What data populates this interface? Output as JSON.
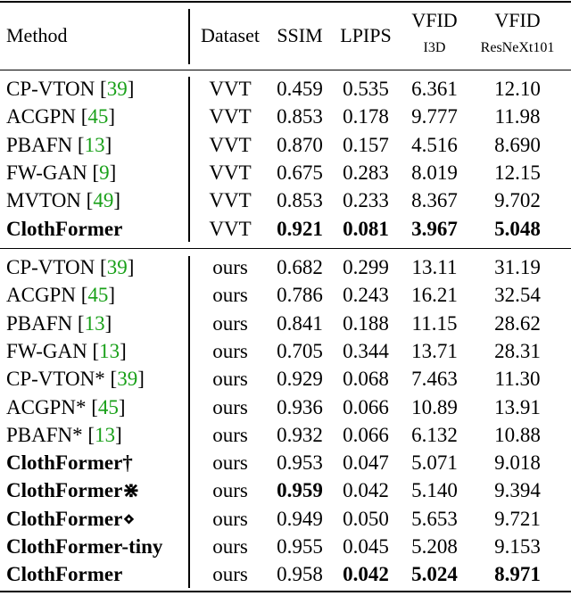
{
  "header": {
    "method": "Method",
    "dataset": "Dataset",
    "ssim": "SSIM",
    "lpips": "LPIPS",
    "vfid_i3d": "VFID",
    "vfid_i3d_sub": "I3D",
    "vfid_resnext": "VFID",
    "vfid_resnext_sub": "ResNeXt101"
  },
  "colors": {
    "citation": "#19a019"
  },
  "group1": [
    {
      "name": "CP-VTON ",
      "cite": "39",
      "dataset": "VVT",
      "ssim": "0.459",
      "lpips": "0.535",
      "vfid_i3d": "6.361",
      "vfid_resnext": "12.10",
      "bold_name": false,
      "bold": []
    },
    {
      "name": "ACGPN ",
      "cite": "45",
      "dataset": "VVT",
      "ssim": "0.853",
      "lpips": "0.178",
      "vfid_i3d": "9.777",
      "vfid_resnext": "11.98",
      "bold_name": false,
      "bold": []
    },
    {
      "name": "PBAFN ",
      "cite": "13",
      "dataset": "VVT",
      "ssim": "0.870",
      "lpips": "0.157",
      "vfid_i3d": "4.516",
      "vfid_resnext": "8.690",
      "bold_name": false,
      "bold": []
    },
    {
      "name": "FW-GAN ",
      "cite": "9",
      "dataset": "VVT",
      "ssim": "0.675",
      "lpips": "0.283",
      "vfid_i3d": "8.019",
      "vfid_resnext": "12.15",
      "bold_name": false,
      "bold": []
    },
    {
      "name": "MVTON ",
      "cite": "49",
      "dataset": "VVT",
      "ssim": "0.853",
      "lpips": "0.233",
      "vfid_i3d": "8.367",
      "vfid_resnext": "9.702",
      "bold_name": false,
      "bold": []
    },
    {
      "name": "ClothFormer",
      "cite": "",
      "dataset": "VVT",
      "ssim": "0.921",
      "lpips": "0.081",
      "vfid_i3d": "3.967",
      "vfid_resnext": "5.048",
      "bold_name": true,
      "bold": [
        "ssim",
        "lpips",
        "vfid_i3d",
        "vfid_resnext"
      ]
    }
  ],
  "group2": [
    {
      "name": "CP-VTON ",
      "cite": "39",
      "dataset": "ours",
      "ssim": "0.682",
      "lpips": "0.299",
      "vfid_i3d": "13.11",
      "vfid_resnext": "31.19",
      "bold_name": false,
      "bold": []
    },
    {
      "name": "ACGPN ",
      "cite": "45",
      "dataset": "ours",
      "ssim": "0.786",
      "lpips": "0.243",
      "vfid_i3d": "16.21",
      "vfid_resnext": "32.54",
      "bold_name": false,
      "bold": []
    },
    {
      "name": "PBAFN ",
      "cite": "13",
      "dataset": "ours",
      "ssim": "0.841",
      "lpips": "0.188",
      "vfid_i3d": "11.15",
      "vfid_resnext": "28.62",
      "bold_name": false,
      "bold": []
    },
    {
      "name": "FW-GAN ",
      "cite": "13",
      "dataset": "ours",
      "ssim": "0.705",
      "lpips": "0.344",
      "vfid_i3d": "13.71",
      "vfid_resnext": "28.31",
      "bold_name": false,
      "bold": []
    },
    {
      "name": "CP-VTON* ",
      "cite": "39",
      "dataset": "ours",
      "ssim": "0.929",
      "lpips": "0.068",
      "vfid_i3d": "7.463",
      "vfid_resnext": "11.30",
      "bold_name": false,
      "bold": []
    },
    {
      "name": "ACGPN* ",
      "cite": "45",
      "dataset": "ours",
      "ssim": "0.936",
      "lpips": "0.066",
      "vfid_i3d": "10.89",
      "vfid_resnext": "13.91",
      "bold_name": false,
      "bold": []
    },
    {
      "name": "PBAFN* ",
      "cite": "13",
      "dataset": "ours",
      "ssim": "0.932",
      "lpips": "0.066",
      "vfid_i3d": "6.132",
      "vfid_resnext": "10.88",
      "bold_name": false,
      "bold": []
    },
    {
      "name": "ClothFormer†",
      "cite": "",
      "dataset": "ours",
      "ssim": "0.953",
      "lpips": "0.047",
      "vfid_i3d": "5.071",
      "vfid_resnext": "9.018",
      "bold_name": true,
      "bold": []
    },
    {
      "name": "ClothFormer⋇",
      "cite": "",
      "dataset": "ours",
      "ssim": "0.959",
      "lpips": "0.042",
      "vfid_i3d": "5.140",
      "vfid_resnext": "9.394",
      "bold_name": true,
      "bold": [
        "ssim"
      ]
    },
    {
      "name": "ClothFormer⋄",
      "cite": "",
      "dataset": "ours",
      "ssim": "0.949",
      "lpips": "0.050",
      "vfid_i3d": "5.653",
      "vfid_resnext": "9.721",
      "bold_name": true,
      "bold": []
    },
    {
      "name": "ClothFormer-tiny",
      "cite": "",
      "dataset": "ours",
      "ssim": "0.955",
      "lpips": "0.045",
      "vfid_i3d": "5.208",
      "vfid_resnext": "9.153",
      "bold_name": true,
      "bold": []
    },
    {
      "name": "ClothFormer",
      "cite": "",
      "dataset": "ours",
      "ssim": "0.958",
      "lpips": "0.042",
      "vfid_i3d": "5.024",
      "vfid_resnext": "8.971",
      "bold_name": true,
      "bold": [
        "lpips",
        "vfid_i3d",
        "vfid_resnext"
      ]
    }
  ]
}
